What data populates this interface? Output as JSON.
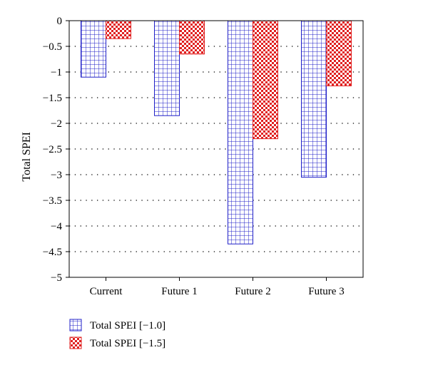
{
  "chart_data": {
    "type": "bar",
    "categories": [
      "Current",
      "Future 1",
      "Future 2",
      "Future 3"
    ],
    "series": [
      {
        "name": "Total SPEI [−1.0]",
        "values": [
          -1.1,
          -1.85,
          -4.35,
          -3.05
        ],
        "color": "#2020c8",
        "pattern": "grid"
      },
      {
        "name": "Total SPEI [−1.5]",
        "values": [
          -0.35,
          -0.65,
          -2.3,
          -1.27
        ],
        "color": "#e02020",
        "pattern": "checker"
      }
    ],
    "ylabel": "Total SPEI",
    "ylim": [
      -5,
      0
    ],
    "yticks": [
      0,
      -0.5,
      -1,
      -1.5,
      -2,
      -2.5,
      -3,
      -3.5,
      -4,
      -4.5,
      -5
    ],
    "ytick_labels": [
      "0",
      "−0.5",
      "−1",
      "−1.5",
      "−2",
      "−2.5",
      "−3",
      "−3.5",
      "−4",
      "−4.5",
      "−5"
    ],
    "grid": "horizontal dotted",
    "legend_position": "bottom-left"
  }
}
